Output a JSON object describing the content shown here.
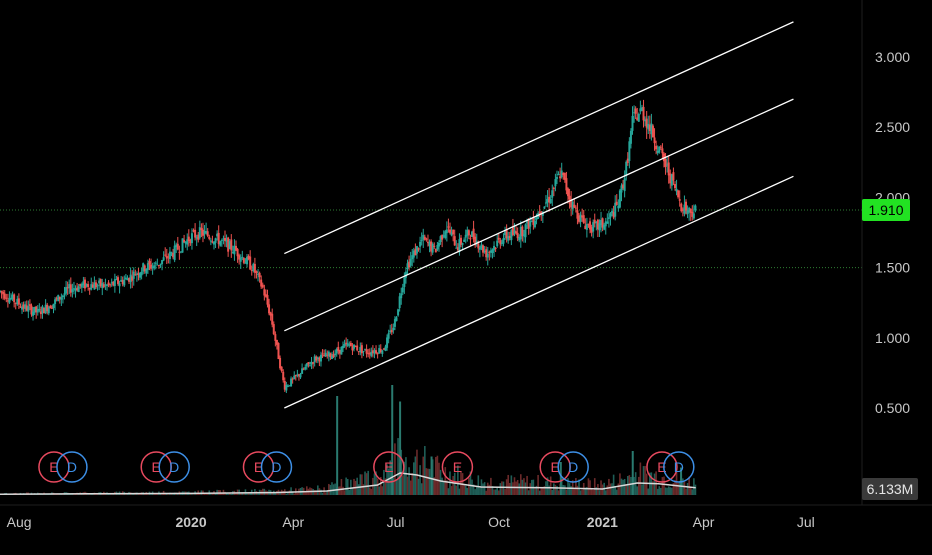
{
  "chart_data": {
    "type": "candlestick",
    "x_ticks": [
      {
        "label": "Aug",
        "date": "2019-08-01"
      },
      {
        "label": "2020",
        "date": "2020-01-01",
        "bold": true
      },
      {
        "label": "Apr",
        "date": "2020-04-01"
      },
      {
        "label": "Jul",
        "date": "2020-07-01"
      },
      {
        "label": "Oct",
        "date": "2020-10-01"
      },
      {
        "label": "2021",
        "date": "2021-01-01",
        "bold": true
      },
      {
        "label": "Apr",
        "date": "2021-04-01"
      },
      {
        "label": "Jul",
        "date": "2021-07-01"
      }
    ],
    "y_ticks": [
      "3.000",
      "2.500",
      "2.000",
      "1.500",
      "1.000",
      "0.500"
    ],
    "y_tick_values": [
      3.0,
      2.5,
      2.0,
      1.5,
      1.0,
      0.5
    ],
    "ylim": [
      0.1,
      3.3
    ],
    "xlim": [
      "2019-07-15",
      "2021-08-20"
    ],
    "last_price": {
      "label": "1.910",
      "value": 1.91
    },
    "volume_badge": "6.133M",
    "reference_line": 1.5,
    "price_path": [
      [
        "2019-07-15",
        1.33
      ],
      [
        "2019-07-25",
        1.28
      ],
      [
        "2019-08-05",
        1.22
      ],
      [
        "2019-08-18",
        1.18
      ],
      [
        "2019-09-01",
        1.25
      ],
      [
        "2019-09-15",
        1.35
      ],
      [
        "2019-10-01",
        1.38
      ],
      [
        "2019-10-20",
        1.37
      ],
      [
        "2019-11-05",
        1.42
      ],
      [
        "2019-11-20",
        1.5
      ],
      [
        "2019-12-01",
        1.52
      ],
      [
        "2019-12-15",
        1.6
      ],
      [
        "2020-01-01",
        1.72
      ],
      [
        "2020-01-10",
        1.75
      ],
      [
        "2020-01-25",
        1.7
      ],
      [
        "2020-02-10",
        1.62
      ],
      [
        "2020-02-25",
        1.5
      ],
      [
        "2020-03-05",
        1.35
      ],
      [
        "2020-03-12",
        1.15
      ],
      [
        "2020-03-18",
        0.9
      ],
      [
        "2020-03-24",
        0.65
      ],
      [
        "2020-04-01",
        0.7
      ],
      [
        "2020-04-20",
        0.85
      ],
      [
        "2020-05-05",
        0.88
      ],
      [
        "2020-05-20",
        0.95
      ],
      [
        "2020-06-05",
        0.9
      ],
      [
        "2020-06-20",
        0.92
      ],
      [
        "2020-06-30",
        1.1
      ],
      [
        "2020-07-10",
        1.5
      ],
      [
        "2020-07-25",
        1.7
      ],
      [
        "2020-08-05",
        1.62
      ],
      [
        "2020-08-15",
        1.8
      ],
      [
        "2020-08-25",
        1.65
      ],
      [
        "2020-09-05",
        1.75
      ],
      [
        "2020-09-20",
        1.6
      ],
      [
        "2020-10-05",
        1.72
      ],
      [
        "2020-10-20",
        1.75
      ],
      [
        "2020-11-01",
        1.85
      ],
      [
        "2020-11-15",
        2.0
      ],
      [
        "2020-11-25",
        2.18
      ],
      [
        "2020-12-05",
        1.95
      ],
      [
        "2020-12-15",
        1.82
      ],
      [
        "2020-12-25",
        1.78
      ],
      [
        "2021-01-05",
        1.82
      ],
      [
        "2021-01-15",
        1.95
      ],
      [
        "2021-01-22",
        2.2
      ],
      [
        "2021-01-28",
        2.55
      ],
      [
        "2021-02-05",
        2.62
      ],
      [
        "2021-02-15",
        2.45
      ],
      [
        "2021-02-25",
        2.25
      ],
      [
        "2021-03-05",
        2.1
      ],
      [
        "2021-03-12",
        1.95
      ],
      [
        "2021-03-20",
        1.9
      ],
      [
        "2021-03-25",
        1.91
      ]
    ],
    "channel_lines": [
      {
        "from": [
          "2020-03-24",
          1.6
        ],
        "to": [
          "2021-06-20",
          3.25
        ]
      },
      {
        "from": [
          "2020-03-24",
          1.05
        ],
        "to": [
          "2021-06-20",
          2.7
        ]
      },
      {
        "from": [
          "2020-03-24",
          0.5
        ],
        "to": [
          "2021-06-20",
          2.15
        ]
      }
    ],
    "events": [
      {
        "type": "E",
        "date": "2019-09-01"
      },
      {
        "type": "D",
        "date": "2019-09-17"
      },
      {
        "type": "E",
        "date": "2019-12-01"
      },
      {
        "type": "D",
        "date": "2019-12-17"
      },
      {
        "type": "E",
        "date": "2020-03-01"
      },
      {
        "type": "D",
        "date": "2020-03-17"
      },
      {
        "type": "E",
        "date": "2020-06-25"
      },
      {
        "type": "E",
        "date": "2020-08-25"
      },
      {
        "type": "E",
        "date": "2020-11-20"
      },
      {
        "type": "D",
        "date": "2020-12-06"
      },
      {
        "type": "E",
        "date": "2021-02-23"
      },
      {
        "type": "D",
        "date": "2021-03-10"
      }
    ],
    "volume_path": [
      [
        "2019-07-15",
        0.02
      ],
      [
        "2019-10-01",
        0.03
      ],
      [
        "2020-01-01",
        0.04
      ],
      [
        "2020-03-15",
        0.06
      ],
      [
        "2020-05-01",
        0.1
      ],
      [
        "2020-06-15",
        0.25
      ],
      [
        "2020-07-05",
        0.55
      ],
      [
        "2020-07-20",
        0.5
      ],
      [
        "2020-08-10",
        0.35
      ],
      [
        "2020-09-15",
        0.2
      ],
      [
        "2020-11-15",
        0.18
      ],
      [
        "2021-01-01",
        0.15
      ],
      [
        "2021-02-01",
        0.3
      ],
      [
        "2021-02-20",
        0.28
      ],
      [
        "2021-03-25",
        0.18
      ]
    ],
    "volume_spikes": [
      [
        "2020-05-10",
        0.9
      ],
      [
        "2020-06-28",
        1.0
      ],
      [
        "2020-07-05",
        0.85
      ],
      [
        "2020-08-02",
        0.35
      ],
      [
        "2020-11-25",
        0.3
      ],
      [
        "2021-01-28",
        0.4
      ],
      [
        "2021-03-12",
        0.25
      ]
    ],
    "colors": {
      "background": "#000000",
      "up": "#26a69a",
      "down": "#ef5350",
      "channel": "#ffffff",
      "grid": "#2a2a2a",
      "price_line": "#2e7d32",
      "price_badge": "#22e222",
      "event_earnings": "#e84a5f",
      "event_dividend": "#3d8fe6",
      "volume_line": "#d9d9d9"
    }
  }
}
